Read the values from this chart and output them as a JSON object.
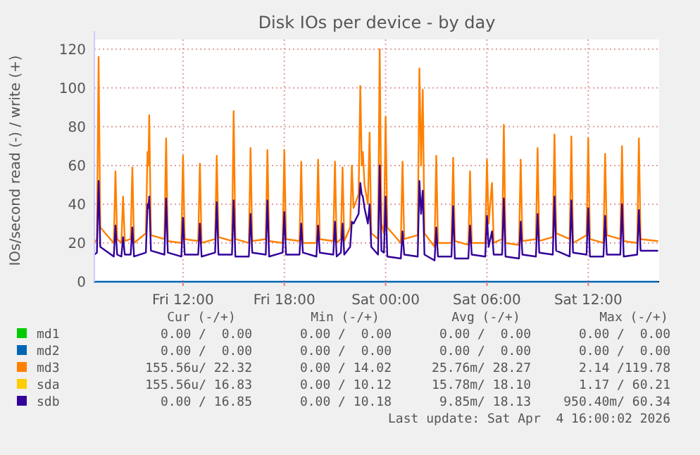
{
  "chart_data": {
    "type": "line",
    "title": "Disk IOs per device - by day",
    "ylabel": "IOs/second read (-) / write (+)",
    "xlim": [
      "2026-04-03T06:45",
      "2026-04-04T16:12"
    ],
    "xticks": [
      {
        "value": "2026-04-03T12:00",
        "label": "Fri 12:00"
      },
      {
        "value": "2026-04-03T18:00",
        "label": "Fri 18:00"
      },
      {
        "value": "2026-04-04T00:00",
        "label": "Sat 00:00"
      },
      {
        "value": "2026-04-04T06:00",
        "label": "Sat 06:00"
      },
      {
        "value": "2026-04-04T12:00",
        "label": "Sat 12:00"
      }
    ],
    "ylim": [
      0,
      125
    ],
    "yticks": [
      0,
      20,
      40,
      60,
      80,
      100,
      120
    ],
    "grid": true,
    "legend": "bottom",
    "x": [
      "2026-04-03T06:45",
      "2026-04-03T06:54",
      "2026-04-03T07:00",
      "2026-04-03T07:06",
      "2026-04-03T07:54",
      "2026-04-03T08:00",
      "2026-04-03T08:06",
      "2026-04-03T08:21",
      "2026-04-03T08:27",
      "2026-04-03T08:33",
      "2026-04-03T08:54",
      "2026-04-03T09:00",
      "2026-04-03T09:06",
      "2026-04-03T09:48",
      "2026-04-03T09:54",
      "2026-04-03T09:57",
      "2026-04-03T10:00",
      "2026-04-03T10:06",
      "2026-04-03T10:54",
      "2026-04-03T11:00",
      "2026-04-03T11:06",
      "2026-04-03T11:54",
      "2026-04-03T12:00",
      "2026-04-03T12:06",
      "2026-04-03T12:54",
      "2026-04-03T13:00",
      "2026-04-03T13:06",
      "2026-04-03T13:54",
      "2026-04-03T14:00",
      "2026-04-03T14:06",
      "2026-04-03T14:54",
      "2026-04-03T15:00",
      "2026-04-03T15:06",
      "2026-04-03T15:54",
      "2026-04-03T16:00",
      "2026-04-03T16:06",
      "2026-04-03T16:54",
      "2026-04-03T17:00",
      "2026-04-03T17:06",
      "2026-04-03T17:54",
      "2026-04-03T18:00",
      "2026-04-03T18:06",
      "2026-04-03T18:54",
      "2026-04-03T19:00",
      "2026-04-03T19:06",
      "2026-04-03T19:54",
      "2026-04-03T20:00",
      "2026-04-03T20:06",
      "2026-04-03T20:54",
      "2026-04-03T21:00",
      "2026-04-03T21:06",
      "2026-04-03T21:21",
      "2026-04-03T21:27",
      "2026-04-03T21:33",
      "2026-04-03T21:54",
      "2026-04-03T22:00",
      "2026-04-03T22:06",
      "2026-04-03T22:24",
      "2026-04-03T22:30",
      "2026-04-03T22:35",
      "2026-04-03T22:39",
      "2026-04-03T22:45",
      "2026-04-03T22:57",
      "2026-04-03T23:03",
      "2026-04-03T23:09",
      "2026-04-03T23:33",
      "2026-04-03T23:39",
      "2026-04-03T23:45",
      "2026-04-03T23:54",
      "2026-04-04T00:00",
      "2026-04-04T00:06",
      "2026-04-04T00:54",
      "2026-04-04T01:00",
      "2026-04-04T01:06",
      "2026-04-04T01:54",
      "2026-04-04T02:00",
      "2026-04-04T02:06",
      "2026-04-04T02:12",
      "2026-04-04T02:18",
      "2026-04-04T02:54",
      "2026-04-04T03:00",
      "2026-04-04T03:06",
      "2026-04-04T03:54",
      "2026-04-04T04:00",
      "2026-04-04T04:06",
      "2026-04-04T04:54",
      "2026-04-04T05:00",
      "2026-04-04T05:06",
      "2026-04-04T05:54",
      "2026-04-04T06:00",
      "2026-04-04T06:06",
      "2026-04-04T06:18",
      "2026-04-04T06:24",
      "2026-04-04T06:54",
      "2026-04-04T07:00",
      "2026-04-04T07:06",
      "2026-04-04T07:54",
      "2026-04-04T08:00",
      "2026-04-04T08:06",
      "2026-04-04T08:54",
      "2026-04-04T09:00",
      "2026-04-04T09:06",
      "2026-04-04T09:54",
      "2026-04-04T10:00",
      "2026-04-04T10:06",
      "2026-04-04T10:54",
      "2026-04-04T11:00",
      "2026-04-04T11:06",
      "2026-04-04T11:54",
      "2026-04-04T12:00",
      "2026-04-04T12:06",
      "2026-04-04T12:54",
      "2026-04-04T13:00",
      "2026-04-04T13:06",
      "2026-04-04T13:54",
      "2026-04-04T14:00",
      "2026-04-04T14:06",
      "2026-04-04T14:54",
      "2026-04-04T15:00",
      "2026-04-04T15:06",
      "2026-04-04T16:06"
    ],
    "series": [
      {
        "name": "md1",
        "color": "#00cc00",
        "values": [
          null,
          null,
          null,
          null,
          null,
          null,
          null,
          null,
          null,
          null,
          null,
          null,
          null,
          null,
          null,
          null,
          null,
          null,
          null,
          null,
          null,
          null,
          null,
          null,
          null,
          null,
          null,
          null,
          null,
          null,
          null,
          null,
          null,
          null,
          null,
          null,
          null,
          null,
          null,
          null,
          null,
          null,
          null,
          null,
          null,
          null,
          null,
          null,
          null,
          null,
          null,
          null,
          null,
          null,
          null,
          null,
          null,
          null,
          null,
          null,
          null,
          null,
          null,
          null,
          null,
          null,
          null,
          null,
          null,
          null,
          null,
          null,
          null,
          null,
          null,
          null,
          null,
          null,
          null,
          null,
          null,
          null,
          null,
          null,
          null,
          null,
          null,
          null,
          null,
          null,
          null,
          null,
          null,
          null,
          null,
          null,
          null,
          null,
          null,
          null,
          null,
          null,
          null,
          null,
          null,
          null,
          null,
          null,
          null,
          null,
          null,
          null,
          null,
          null,
          null,
          null,
          null,
          null,
          null,
          null,
          null
        ]
      },
      {
        "name": "md2",
        "color": "#0066b3",
        "values": [
          0,
          0,
          0,
          0,
          0,
          0,
          0,
          0,
          0,
          0,
          0,
          0,
          0,
          0,
          0,
          0,
          0,
          0,
          0,
          0,
          0,
          0,
          0,
          0,
          0,
          0,
          0,
          0,
          0,
          0,
          0,
          0,
          0,
          0,
          0,
          0,
          0,
          0,
          0,
          0,
          0,
          0,
          0,
          0,
          0,
          0,
          0,
          0,
          0,
          0,
          0,
          0,
          0,
          0,
          0,
          0,
          0,
          0,
          0,
          0,
          0,
          0,
          0,
          0,
          0,
          0,
          0,
          0,
          0,
          0,
          0,
          0,
          0,
          0,
          0,
          0,
          0,
          0,
          0,
          0,
          0,
          0,
          0,
          0,
          0,
          0,
          0,
          0,
          0,
          0,
          0,
          0,
          0,
          0,
          0,
          0,
          0,
          0,
          0,
          0,
          0,
          0,
          0,
          0,
          0,
          0,
          0,
          0,
          0,
          0,
          0,
          0,
          0,
          0,
          0,
          0,
          0,
          0,
          0,
          0,
          0
        ]
      },
      {
        "name": "md3",
        "color": "#ff8000",
        "values": [
          20,
          22,
          116,
          28,
          20,
          57,
          22,
          20,
          44,
          21,
          22,
          59,
          20,
          25,
          67,
          60,
          86,
          24,
          22,
          74,
          21,
          20,
          65,
          22,
          21,
          61,
          20,
          22,
          65,
          23,
          21,
          88,
          22,
          20,
          69,
          21,
          22,
          68,
          21,
          20,
          68,
          22,
          21,
          62,
          20,
          20,
          63,
          22,
          21,
          62,
          20,
          22,
          59,
          21,
          28,
          60,
          38,
          45,
          101,
          60,
          67,
          50,
          40,
          77,
          25,
          22,
          120,
          30,
          25,
          85,
          28,
          20,
          62,
          22,
          24,
          110,
          60,
          99,
          25,
          18,
          65,
          20,
          20,
          64,
          21,
          19,
          57,
          20,
          20,
          63,
          30,
          51,
          20,
          22,
          81,
          20,
          19,
          63,
          21,
          22,
          69,
          21,
          23,
          76,
          25,
          22,
          75,
          20,
          24,
          74,
          22,
          20,
          66,
          24,
          22,
          70,
          21,
          20,
          74,
          22,
          21
        ]
      },
      {
        "name": "sda",
        "color": "#ffcc00",
        "values": [
          null,
          null,
          null,
          null,
          null,
          null,
          null,
          null,
          null,
          null,
          null,
          null,
          null,
          null,
          null,
          null,
          null,
          null,
          null,
          null,
          null,
          null,
          null,
          null,
          null,
          null,
          null,
          null,
          null,
          null,
          null,
          null,
          null,
          null,
          null,
          null,
          null,
          null,
          null,
          null,
          null,
          null,
          null,
          null,
          null,
          null,
          null,
          null,
          null,
          null,
          null,
          null,
          null,
          null,
          null,
          null,
          null,
          null,
          null,
          null,
          null,
          null,
          null,
          null,
          null,
          null,
          null,
          null,
          null,
          null,
          null,
          null,
          null,
          null,
          null,
          null,
          null,
          null,
          null,
          null,
          null,
          null,
          null,
          null,
          null,
          null,
          null,
          null,
          null,
          null,
          null,
          null,
          null,
          null,
          null,
          null,
          null,
          null,
          null,
          null,
          null,
          null,
          null,
          null,
          null,
          null,
          null,
          null,
          null,
          null,
          null,
          null,
          null,
          null,
          null,
          null,
          null,
          null,
          null,
          null,
          null
        ]
      },
      {
        "name": "sdb",
        "color": "#330099",
        "values": [
          14,
          15,
          52,
          18,
          13,
          29,
          14,
          13,
          23,
          14,
          14,
          28,
          13,
          15,
          40,
          38,
          44,
          16,
          14,
          43,
          15,
          13,
          33,
          14,
          14,
          30,
          13,
          15,
          41,
          14,
          14,
          42,
          13,
          13,
          35,
          15,
          14,
          42,
          13,
          15,
          36,
          14,
          14,
          30,
          15,
          13,
          29,
          15,
          14,
          31,
          13,
          15,
          30,
          14,
          18,
          31,
          30,
          35,
          51,
          45,
          44,
          38,
          30,
          40,
          18,
          14,
          60,
          16,
          15,
          44,
          13,
          12,
          26,
          14,
          13,
          52,
          35,
          47,
          14,
          11,
          28,
          13,
          13,
          39,
          12,
          12,
          29,
          14,
          13,
          34,
          18,
          26,
          14,
          14,
          43,
          13,
          12,
          31,
          14,
          13,
          35,
          15,
          14,
          44,
          16,
          13,
          42,
          15,
          14,
          38,
          13,
          13,
          34,
          14,
          14,
          40,
          13,
          14,
          37,
          16,
          16
        ]
      }
    ],
    "annotations": [
      "Cur (-/+)",
      "Min (-/+)",
      "Avg (-/+)",
      "Max (-/+)",
      "0.00 /  0.00",
      "0.00 /  0.00",
      "0.00 /  0.00",
      "0.00 /  0.00",
      "0.00 /  0.00",
      "0.00 /  0.00",
      "0.00 /  0.00",
      "0.00 /  0.00",
      "155.56u/ 22.32",
      "0.00 / 14.02",
      "25.76m/ 28.27",
      "2.14 /119.78",
      "155.56u/ 16.83",
      "0.00 / 10.12",
      "15.78m/ 18.10",
      "1.17 / 60.21",
      "0.00 / 16.85",
      "0.00 / 10.18",
      "9.85m/ 18.13",
      "950.40m/ 60.34",
      "Last update: Sat Apr  4 16:00:02 2026"
    ]
  }
}
